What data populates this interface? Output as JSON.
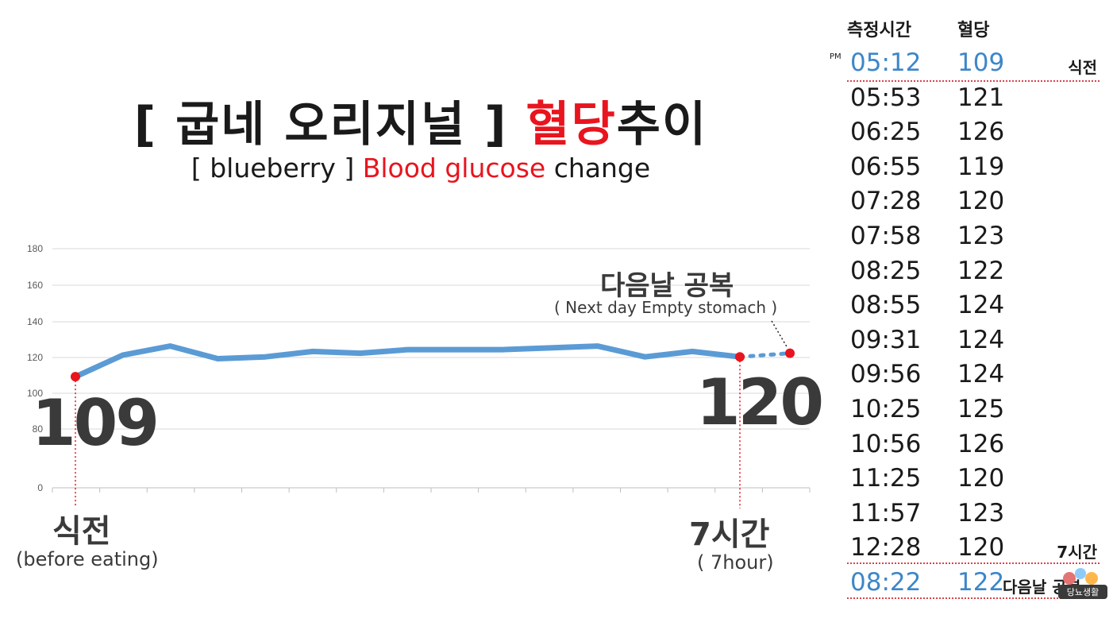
{
  "title": {
    "prefix": "[ 굽네 오리지널 ] ",
    "highlight": "혈당",
    "suffix": "추이"
  },
  "subtitle": {
    "prefix": "[ blueberry ]  ",
    "highlight": "Blood glucose",
    "suffix": " change"
  },
  "chart_data": {
    "type": "line",
    "y_ticks": [
      "0",
      "80",
      "100",
      "120",
      "140",
      "160",
      "180"
    ],
    "categories": [
      "05:12",
      "05:53",
      "06:25",
      "06:55",
      "07:28",
      "07:58",
      "08:25",
      "08:55",
      "09:31",
      "09:56",
      "10:25",
      "10:56",
      "11:25",
      "11:57",
      "12:28"
    ],
    "series": [
      {
        "values": [
          109,
          121,
          126,
          119,
          120,
          123,
          122,
          124,
          124,
          124,
          125,
          126,
          120,
          123,
          120
        ],
        "color": "#5b9bd5",
        "style": "solid"
      }
    ],
    "next_day_point": {
      "x": "08:22",
      "value": 122,
      "color": "#5b9bd5",
      "style": "dotted"
    },
    "grid": true,
    "annotations": {
      "start_value": "109",
      "end_value": "120",
      "start_label": "식전",
      "start_sublabel": "(before eating)",
      "end_label": "7시간",
      "end_sublabel": "( 7hour)",
      "next_day_label": "다음날 공복",
      "next_day_sublabel": "( Next day Empty stomach )"
    },
    "colors": {
      "marker": "#e8141e",
      "line": "#5b9bd5"
    }
  },
  "table": {
    "header_time": "측정시간",
    "header_value": "혈당",
    "pm_label": "PM",
    "rows": [
      {
        "time": "05:12",
        "value": "109",
        "note": "식전"
      },
      {
        "time": "05:53",
        "value": "121",
        "note": ""
      },
      {
        "time": "06:25",
        "value": "126",
        "note": ""
      },
      {
        "time": "06:55",
        "value": "119",
        "note": ""
      },
      {
        "time": "07:28",
        "value": "120",
        "note": ""
      },
      {
        "time": "07:58",
        "value": "123",
        "note": ""
      },
      {
        "time": "08:25",
        "value": "122",
        "note": ""
      },
      {
        "time": "08:55",
        "value": "124",
        "note": ""
      },
      {
        "time": "09:31",
        "value": "124",
        "note": ""
      },
      {
        "time": "09:56",
        "value": "124",
        "note": ""
      },
      {
        "time": "10:25",
        "value": "125",
        "note": ""
      },
      {
        "time": "10:56",
        "value": "126",
        "note": ""
      },
      {
        "time": "11:25",
        "value": "120",
        "note": ""
      },
      {
        "time": "11:57",
        "value": "123",
        "note": ""
      },
      {
        "time": "12:28",
        "value": "120",
        "note": "7시간"
      },
      {
        "time": "08:22",
        "value": "122",
        "note": "다음날 공복"
      }
    ],
    "highlight_color": "#3d86c9",
    "logo_icon": "badge-logo-icon",
    "logo_text": "당뇨생활"
  }
}
